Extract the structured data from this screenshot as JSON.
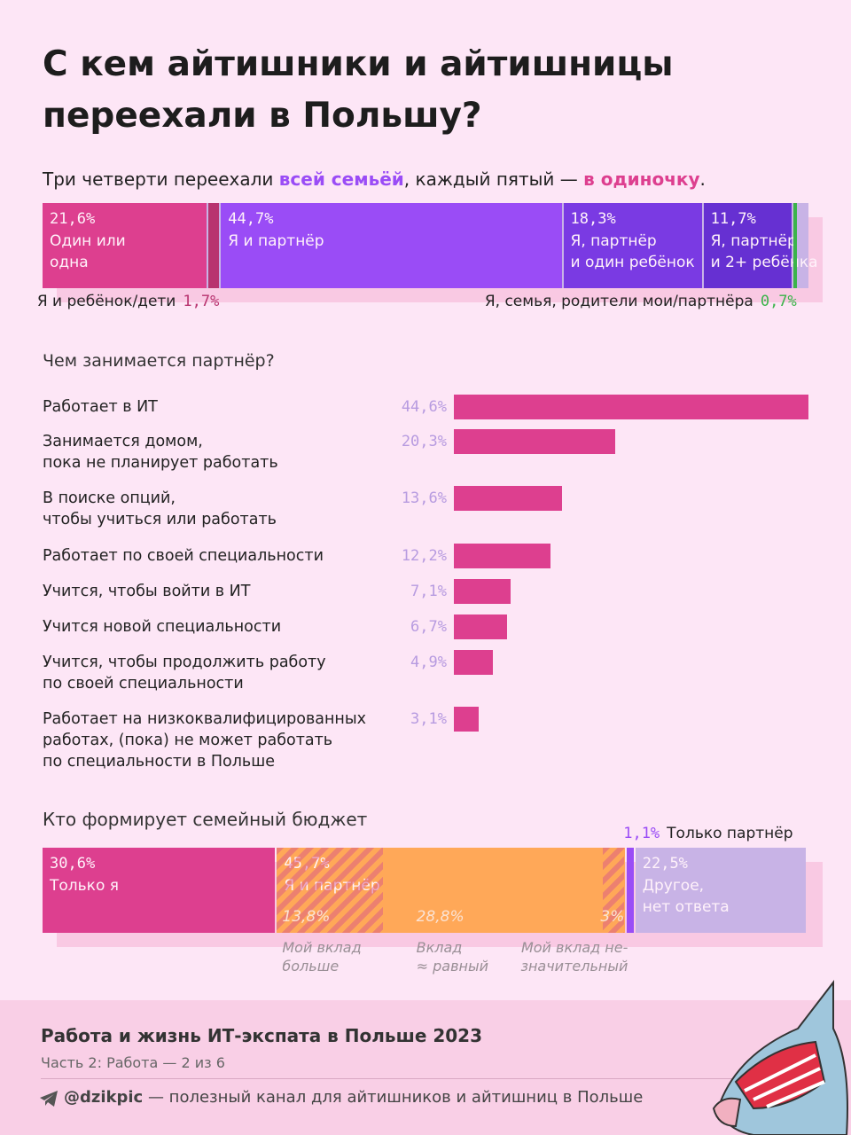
{
  "header": {
    "title": "С кем айтишники и айтишницы переехали в Польшу?",
    "subtitle": [
      "Три четверти переехали ",
      "всей семьёй",
      ", каждый пятый — ",
      "в одиночку",
      "."
    ]
  },
  "chart_data": [
    {
      "type": "stacked-bar",
      "categories": [
        "Один или\nодна",
        "Я и ребёнок/дети",
        "Я и партнёр",
        "Я, партнёр\nи один ребёнок",
        "Я, партнёр\nи 2+ ребёнка",
        "Я, семья, родители мои/партнёра"
      ],
      "values": [
        21.6,
        1.7,
        44.7,
        18.3,
        11.7,
        0.7
      ],
      "value_labels": [
        "21,6%",
        "1,7%",
        "44,7%",
        "18,3%",
        "11,7%",
        "0,7%"
      ],
      "colors": [
        "#dd3f8f",
        "#b8336f",
        "#9a4cf6",
        "#7a3ae3",
        "#6630d2",
        "#3bb44a"
      ]
    },
    {
      "type": "bar",
      "title": "Чем занимается партнёр?",
      "categories": [
        "Работает в ИТ",
        "Занимается домом,\nпока не планирует работать",
        "В поиске опций,\nчтобы учиться или работать",
        "Работает по своей специальности",
        "Учится, чтобы войти в ИТ",
        "Учится новой специальности",
        "Учится, чтобы продолжить работу\nпо своей специальности",
        "Работает на низкоквалифицированных\nработах, (пока) не может работать\nпо специальности в Польше"
      ],
      "values": [
        44.6,
        20.3,
        13.6,
        12.2,
        7.1,
        6.7,
        4.9,
        3.1
      ],
      "value_labels": [
        "44,6%",
        "20,3%",
        "13,6%",
        "12,2%",
        "7,1%",
        "6,7%",
        "4,9%",
        "3,1%"
      ],
      "color": "#dd3f8f"
    },
    {
      "type": "stacked-bar",
      "title": "Кто формирует семейный бюджет",
      "categories": [
        "Только я",
        "Я и партнёр",
        "Только партнёр",
        "Другое,\nнет ответа"
      ],
      "values": [
        30.6,
        45.7,
        1.1,
        22.5
      ],
      "value_labels": [
        "30,6%",
        "45,7%",
        "1,1%",
        "22,5%"
      ],
      "colors": [
        "#dd3f8f",
        "#ffa858",
        "#9a4cf6",
        "#c8b3e6"
      ],
      "breakdown": {
        "of": "Я и партнёр",
        "categories": [
          "Мой вклад\nбольше",
          "Вклад\n≈ равный",
          "Мой вклад не-\nзначительный"
        ],
        "values": [
          13.8,
          28.8,
          3
        ],
        "value_labels": [
          "13,8%",
          "28,8%",
          "3%"
        ]
      }
    }
  ],
  "footer": {
    "title": "Работа и жизнь ИТ-экспата в Польше 2023",
    "subtitle": "Часть 2: Работа — 2 из 6",
    "channel": "@dzikpic",
    "channel_note": " — полезный канал для айтишников и айтишниц в Польше"
  }
}
